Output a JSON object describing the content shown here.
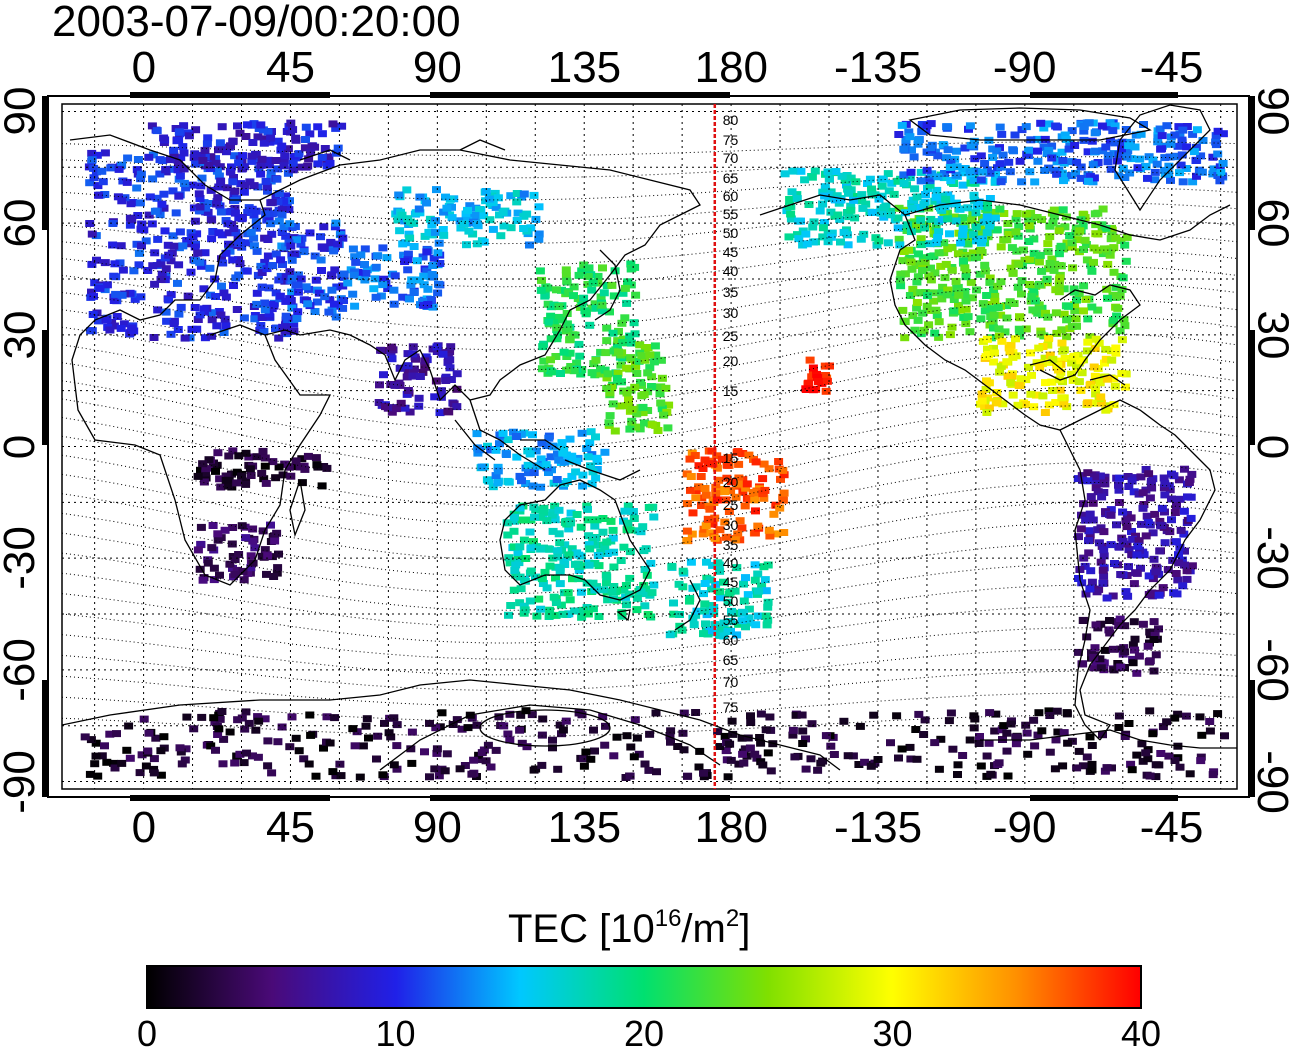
{
  "title": "2003-07-09/00:20:00",
  "map": {
    "lon_ticks": [
      "0",
      "45",
      "90",
      "135",
      "180",
      "-135",
      "-90",
      "-45"
    ],
    "lat_ticks": [
      "90",
      "60",
      "30",
      "0",
      "-30",
      "-60",
      "-90"
    ],
    "lon_range": [
      -25,
      335
    ],
    "lat_range": [
      -92,
      92
    ],
    "grid": "dotted every 15 degrees",
    "meridian_marker": {
      "longitude": 175,
      "color": "#e01010"
    },
    "magnetic_latitude_labels_north": [
      "80",
      "75",
      "70",
      "65",
      "60",
      "55",
      "50",
      "45",
      "40",
      "35",
      "30",
      "25",
      "20",
      "15"
    ],
    "magnetic_latitude_labels_south": [
      "15",
      "20",
      "25",
      "30",
      "35",
      "40",
      "45",
      "50",
      "55",
      "60",
      "65",
      "70",
      "75"
    ]
  },
  "colorbar": {
    "title_prefix": "TEC  [10",
    "title_exp1": "16",
    "title_mid": "/m",
    "title_exp2": "2",
    "title_suffix": "]",
    "ticks": [
      "0",
      "10",
      "20",
      "30",
      "40"
    ],
    "range": [
      0,
      40
    ],
    "colors": [
      "#000000",
      "#4a0a78",
      "#2020e8",
      "#00c8ff",
      "#00e070",
      "#80e000",
      "#ffff00",
      "#ff9000",
      "#ff0000"
    ]
  },
  "tec_regions": [
    {
      "name": "europe",
      "lon": [
        -18,
        45
      ],
      "lat": [
        30,
        80
      ],
      "tec": 10
    },
    {
      "name": "russia-west",
      "lon": [
        40,
        60
      ],
      "lat": [
        35,
        62
      ],
      "tec": 11
    },
    {
      "name": "central-asia",
      "lon": [
        60,
        90
      ],
      "lat": [
        38,
        55
      ],
      "tec": 12
    },
    {
      "name": "arctic-europe",
      "lon": [
        0,
        60
      ],
      "lat": [
        75,
        88
      ],
      "tec": 9
    },
    {
      "name": "siberia",
      "lon": [
        75,
        120
      ],
      "lat": [
        55,
        70
      ],
      "tec": 15
    },
    {
      "name": "japan-china",
      "lon": [
        120,
        150
      ],
      "lat": [
        20,
        50
      ],
      "tec": 21
    },
    {
      "name": "western-pacific",
      "lon": [
        140,
        160
      ],
      "lat": [
        5,
        30
      ],
      "tec": 23
    },
    {
      "name": "india",
      "lon": [
        70,
        95
      ],
      "lat": [
        10,
        28
      ],
      "tec": 7
    },
    {
      "name": "indonesia",
      "lon": [
        100,
        140
      ],
      "lat": [
        -10,
        5
      ],
      "tec": 14
    },
    {
      "name": "australia",
      "lon": [
        110,
        155
      ],
      "lat": [
        -45,
        -15
      ],
      "tec": 18
    },
    {
      "name": "new-zealand",
      "lon": [
        160,
        190
      ],
      "lat": [
        -50,
        -30
      ],
      "tec": 17
    },
    {
      "name": "pacific-hot-south",
      "lon": [
        165,
        195
      ],
      "lat": [
        -25,
        0
      ],
      "tec": 37
    },
    {
      "name": "hawaii",
      "lon": [
        200,
        210
      ],
      "lat": [
        15,
        25
      ],
      "tec": 39
    },
    {
      "name": "north-america",
      "lon": [
        230,
        300
      ],
      "lat": [
        30,
        65
      ],
      "tec": 23
    },
    {
      "name": "alaska-canada",
      "lon": [
        195,
        260
      ],
      "lat": [
        55,
        75
      ],
      "tec": 17
    },
    {
      "name": "arctic-america",
      "lon": [
        230,
        330
      ],
      "lat": [
        72,
        88
      ],
      "tec": 12
    },
    {
      "name": "mexico-caribbean",
      "lon": [
        255,
        300
      ],
      "lat": [
        10,
        30
      ],
      "tec": 30
    },
    {
      "name": "south-america",
      "lon": [
        285,
        320
      ],
      "lat": [
        -40,
        -5
      ],
      "tec": 7
    },
    {
      "name": "patagonia",
      "lon": [
        285,
        310
      ],
      "lat": [
        -60,
        -45
      ],
      "tec": 3
    },
    {
      "name": "africa-south",
      "lon": [
        15,
        40
      ],
      "lat": [
        -35,
        -20
      ],
      "tec": 4
    },
    {
      "name": "africa-central",
      "lon": [
        15,
        55
      ],
      "lat": [
        -10,
        0
      ],
      "tec": 2
    },
    {
      "name": "antarctica",
      "lon": [
        -20,
        330
      ],
      "lat": [
        -88,
        -70
      ],
      "tec": 2
    }
  ]
}
